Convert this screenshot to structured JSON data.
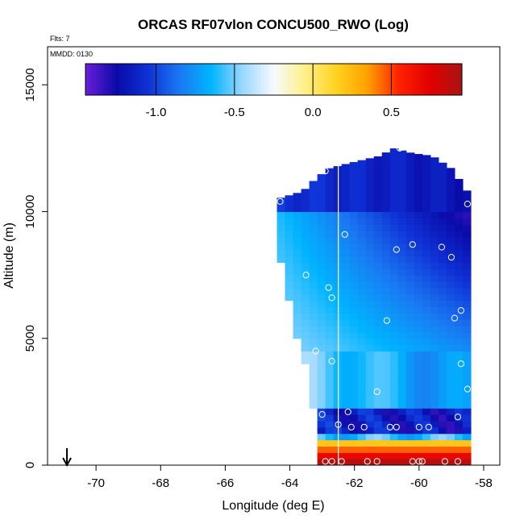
{
  "chart_data": {
    "type": "heatmap",
    "title": "ORCAS RF07vlon CONCU500_RWO (Log)",
    "xlabel": "Longitude (deg E)",
    "ylabel": "Altitude (m)",
    "flights_note": "Flts: 7",
    "date_note": "MMDD: 0130",
    "xlim": [
      -71.5,
      -57.5
    ],
    "ylim": [
      0,
      16500
    ],
    "x_ticks": [
      -70,
      -68,
      -66,
      -64,
      -62,
      -60,
      -58
    ],
    "y_ticks": [
      0,
      5000,
      10000,
      15000
    ],
    "colorbar": {
      "range": [
        -1.45,
        0.95
      ],
      "ticks": [
        -1.0,
        -0.5,
        0.0,
        0.5
      ],
      "tick_labels": [
        "-1.0",
        "-0.5",
        "0.0",
        "0.5"
      ],
      "colors": [
        "#6a1fd8",
        "#0a0aa8",
        "#0f32d6",
        "#1a78f2",
        "#00b4ff",
        "#9ad6ff",
        "#f6faff",
        "#fff089",
        "#ffd21e",
        "#ffa000",
        "#ff2000",
        "#e00000",
        "#a81414"
      ]
    },
    "field": {
      "lon_range": [
        -64.4,
        -58.4
      ],
      "x_step_deg": 0.25,
      "alt_step_m": 250,
      "top_edge": [
        [
          -64.4,
          10500
        ],
        [
          -63.6,
          10800
        ],
        [
          -63.2,
          11300
        ],
        [
          -62.8,
          11700
        ],
        [
          -62.2,
          11900
        ],
        [
          -61.2,
          12200
        ],
        [
          -60.8,
          12500
        ],
        [
          -60.2,
          12300
        ],
        [
          -59.6,
          12200
        ],
        [
          -59.0,
          11700
        ],
        [
          -58.4,
          10600
        ]
      ],
      "bottom_edge": [
        [
          -64.4,
          8800
        ],
        [
          -64.2,
          7600
        ],
        [
          -63.8,
          5200
        ],
        [
          -63.4,
          3600
        ],
        [
          -63.2,
          1800
        ],
        [
          -63.2,
          0
        ],
        [
          -58.4,
          0
        ]
      ],
      "value_regime": [
        {
          "alt_min": 10000,
          "alt_max": 12500,
          "value": -1.15
        },
        {
          "alt_min": 5000,
          "alt_max": 10000,
          "value": -0.7
        },
        {
          "alt_min": 2000,
          "alt_max": 5000,
          "value": -0.55
        },
        {
          "alt_min": 1000,
          "alt_max": 2000,
          "value": -1.1
        },
        {
          "alt_min": 0,
          "alt_max": 1000,
          "value": 0.55
        }
      ]
    },
    "flight_track_lon": -62.5,
    "obs_points": [
      [
        -60.6,
        12500
      ],
      [
        -58.9,
        11900
      ],
      [
        -62.9,
        11600
      ],
      [
        -64.3,
        10400
      ],
      [
        -58.5,
        10300
      ],
      [
        -62.3,
        9100
      ],
      [
        -60.7,
        8500
      ],
      [
        -60.2,
        8700
      ],
      [
        -59.3,
        8600
      ],
      [
        -59.0,
        8200
      ],
      [
        -63.5,
        7500
      ],
      [
        -62.8,
        7000
      ],
      [
        -62.7,
        6600
      ],
      [
        -58.7,
        6100
      ],
      [
        -58.9,
        5800
      ],
      [
        -61.0,
        5700
      ],
      [
        -63.2,
        4500
      ],
      [
        -62.7,
        4100
      ],
      [
        -58.7,
        4000
      ],
      [
        -61.3,
        2900
      ],
      [
        -58.5,
        3000
      ],
      [
        -63.0,
        2000
      ],
      [
        -62.2,
        2100
      ],
      [
        -62.5,
        1600
      ],
      [
        -60.9,
        1500
      ],
      [
        -60.7,
        1500
      ],
      [
        -60.0,
        1500
      ],
      [
        -59.7,
        1500
      ],
      [
        -58.8,
        1900
      ],
      [
        -62.1,
        1500
      ],
      [
        -61.7,
        1500
      ],
      [
        -62.9,
        150
      ],
      [
        -62.7,
        150
      ],
      [
        -62.4,
        150
      ],
      [
        -61.6,
        150
      ],
      [
        -61.3,
        150
      ],
      [
        -60.2,
        150
      ],
      [
        -60.0,
        150
      ],
      [
        -59.9,
        150
      ],
      [
        -59.2,
        150
      ],
      [
        -58.8,
        150
      ]
    ],
    "arrow_lon": -70.9
  }
}
